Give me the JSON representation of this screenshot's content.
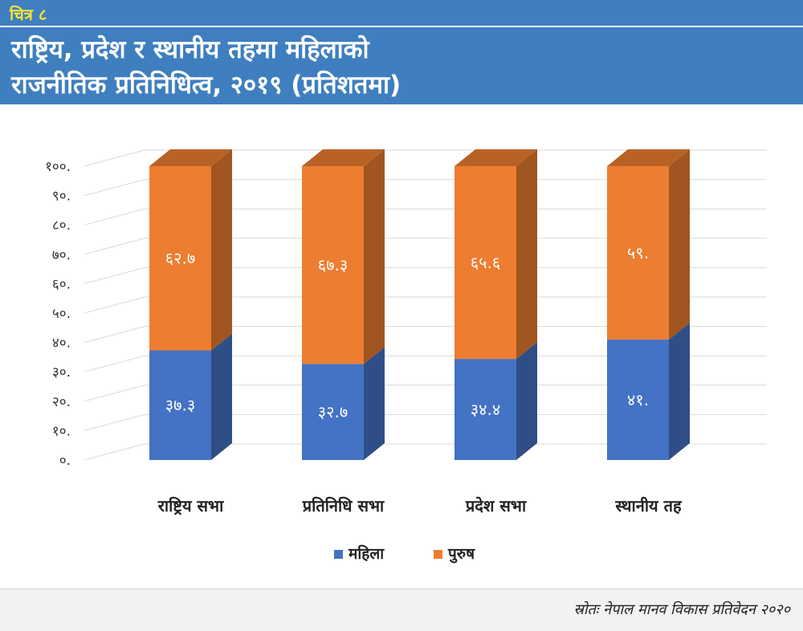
{
  "header": {
    "figure_label": "चित्र ८",
    "title_line1": "राष्ट्रिय, प्रदेश र स्थानीय तहमा महिलाको",
    "title_line2": "राजनीतिक प्रतिनिधित्व, २०१९ (प्रतिशतमा)"
  },
  "footer": {
    "source": "स्रोतः नेपाल मानव विकास प्रतिवेदन २०२०"
  },
  "colors": {
    "header_bg": "#3f7fbf",
    "accent_yellow": "#f5e13a",
    "women": "#4472c4",
    "men": "#ed7d31"
  },
  "chart_data": {
    "type": "bar",
    "stacked": true,
    "style": "3d",
    "title": "राष्ट्रिय, प्रदेश र स्थानीय तहमा महिलाको राजनीतिक प्रतिनिधित्व, २०१९ (प्रतिशतमा)",
    "categories": [
      "राष्ट्रिय सभा",
      "प्रतिनिधि सभा",
      "प्रदेश सभा",
      "स्थानीय तह"
    ],
    "series": [
      {
        "name": "महिला",
        "values": [
          37.3,
          32.7,
          34.4,
          41
        ],
        "labels": [
          "३७.३",
          "३२.७",
          "३४.४",
          "४१."
        ],
        "color": "#4472c4"
      },
      {
        "name": "पुरुष",
        "values": [
          62.7,
          67.3,
          65.6,
          59
        ],
        "labels": [
          "६२.७",
          "६७.३",
          "६५.६",
          "५९."
        ],
        "color": "#ed7d31"
      }
    ],
    "y_ticks": [
      0,
      10,
      20,
      30,
      40,
      50,
      60,
      70,
      80,
      90,
      100
    ],
    "y_tick_labels": [
      "०.",
      "१०.",
      "२०.",
      "३०.",
      "४०.",
      "५०.",
      "६०.",
      "७०.",
      "८०.",
      "९०.",
      "१००."
    ],
    "ylim": [
      0,
      100
    ],
    "xlabel": "",
    "ylabel": "",
    "grid": true,
    "legend": "bottom-center"
  }
}
